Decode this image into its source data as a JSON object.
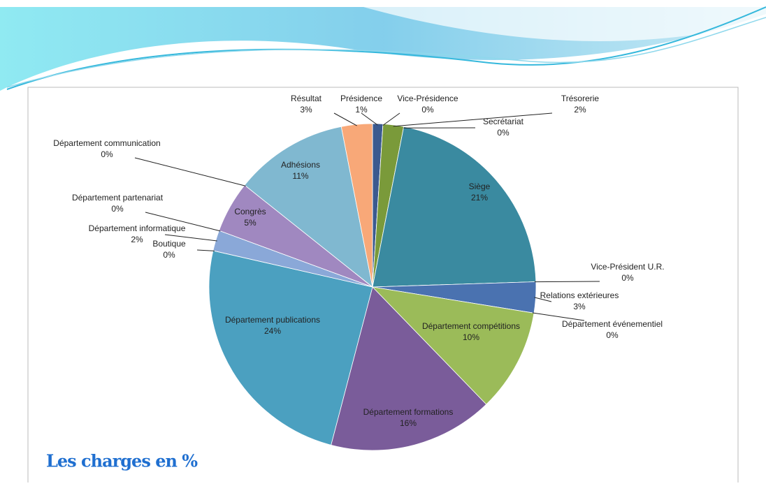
{
  "chart_data": {
    "type": "pie",
    "title": "Les charges en %",
    "categories": [
      "Présidence",
      "Vice-Présidence",
      "Trésorerie",
      "Secrétariat",
      "Siège",
      "Vice-Président U.R.",
      "Relations extérieures",
      "Département événementiel",
      "Département compétitions",
      "Département formations",
      "Département publications",
      "Boutique",
      "Département informatique",
      "Département partenariat",
      "Congrès",
      "Département communication",
      "Adhésions",
      "Résultat"
    ],
    "values": [
      1,
      0,
      2,
      0,
      21,
      0,
      3,
      0,
      10,
      16,
      24,
      0,
      2,
      0,
      5,
      0,
      11,
      3
    ],
    "value_labels": [
      "1%",
      "0%",
      "2%",
      "0%",
      "21%",
      "0%",
      "3%",
      "0%",
      "10%",
      "16%",
      "24%",
      "0%",
      "2%",
      "0%",
      "5%",
      "0%",
      "11%",
      "3%"
    ],
    "colors": [
      "#3b5a8f",
      "#a0393a",
      "#7a9a3a",
      "#6a4f8a",
      "#3a8aa0",
      "#e0884a",
      "#4a72b0",
      "#c0504d",
      "#9bbb59",
      "#7a5c9a",
      "#4ba0c0",
      "#f0a060",
      "#8aa8d8",
      "#c0d890",
      "#a088c0",
      "#a0d0e0",
      "#80b8d0",
      "#f8a878"
    ]
  }
}
